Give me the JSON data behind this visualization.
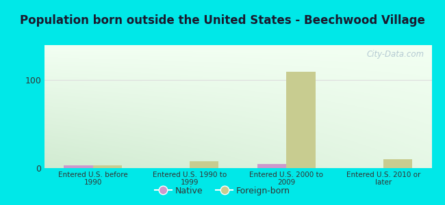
{
  "title": "Population born outside the United States - Beechwood Village",
  "categories": [
    "Entered U.S. before\n1990",
    "Entered U.S. 1990 to\n1999",
    "Entered U.S. 2000 to\n2009",
    "Entered U.S. 2010 or\nlater"
  ],
  "native_values": [
    3,
    0,
    5,
    0
  ],
  "foreign_values": [
    3,
    8,
    110,
    10
  ],
  "native_color": "#cc99cc",
  "foreign_color": "#c8cc90",
  "background_outer": "#00e8e8",
  "bar_width": 0.3,
  "ylim": [
    0,
    140
  ],
  "yticks": [
    0,
    100
  ],
  "grid_color": "#dddddd",
  "title_fontsize": 12,
  "title_color": "#1a1a2e",
  "legend_native": "Native",
  "legend_foreign": "Foreign-born",
  "watermark": "City-Data.com",
  "tick_label_color": "#333333",
  "tick_label_fontsize": 7.5
}
